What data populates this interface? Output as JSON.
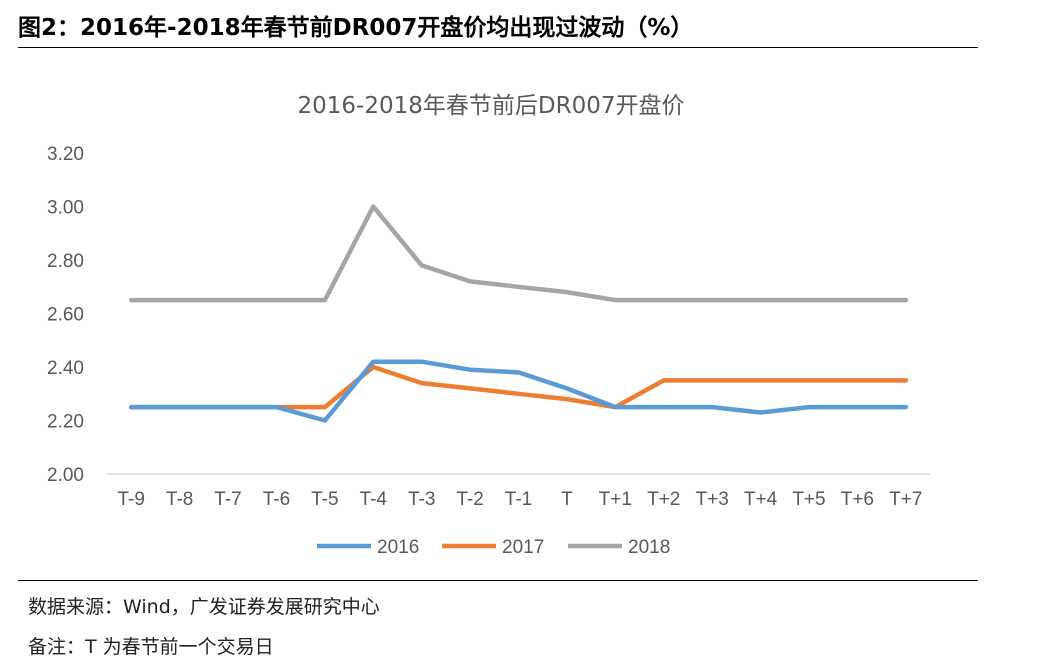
{
  "figure": {
    "title": "图2：2016年-2018年春节前DR007开盘价均出现过波动（%）",
    "source": "数据来源：Wind，广发证券发展研究中心",
    "note": "备注：T 为春节前一个交易日"
  },
  "chart_data": {
    "type": "line",
    "title": "2016-2018年春节前后DR007开盘价",
    "xlabel": "",
    "ylabel": "",
    "ylim": [
      2.0,
      3.2
    ],
    "yticks": [
      "2.00",
      "2.20",
      "2.40",
      "2.60",
      "2.80",
      "3.00",
      "3.20"
    ],
    "ytick_values": [
      2.0,
      2.2,
      2.4,
      2.6,
      2.8,
      3.0,
      3.2
    ],
    "grid": false,
    "legend_position": "bottom",
    "categories": [
      "T-9",
      "T-8",
      "T-7",
      "T-6",
      "T-5",
      "T-4",
      "T-3",
      "T-2",
      "T-1",
      "T",
      "T+1",
      "T+2",
      "T+3",
      "T+4",
      "T+5",
      "T+6",
      "T+7"
    ],
    "series": [
      {
        "name": "2016",
        "color": "#5b9bd5",
        "values": [
          2.25,
          2.25,
          2.25,
          2.25,
          2.2,
          2.42,
          2.42,
          2.39,
          2.38,
          2.32,
          2.25,
          2.25,
          2.25,
          2.23,
          2.25,
          2.25,
          2.25
        ]
      },
      {
        "name": "2017",
        "color": "#ed7d31",
        "values": [
          2.25,
          2.25,
          2.25,
          2.25,
          2.25,
          2.4,
          2.34,
          2.32,
          2.3,
          2.28,
          2.25,
          2.35,
          2.35,
          2.35,
          2.35,
          2.35,
          2.35
        ]
      },
      {
        "name": "2018",
        "color": "#a5a5a5",
        "values": [
          2.65,
          2.65,
          2.65,
          2.65,
          2.65,
          3.0,
          2.78,
          2.72,
          2.7,
          2.68,
          2.65,
          2.65,
          2.65,
          2.65,
          2.65,
          2.65,
          2.65
        ]
      }
    ]
  }
}
